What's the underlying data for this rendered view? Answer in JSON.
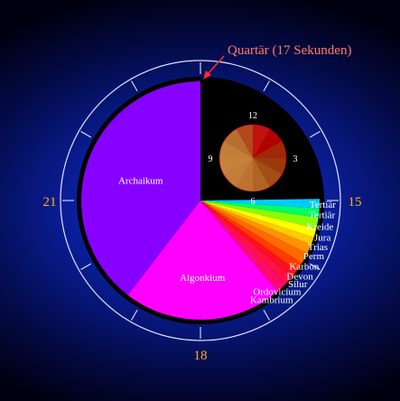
{
  "chart_data": {
    "type": "pie",
    "title": "",
    "clock_labels": {
      "top": "",
      "right": "15",
      "bottom": "18",
      "left": "21"
    },
    "callout": {
      "label": "Quartär (17 Sekunden)",
      "color": "#ff7a6a"
    },
    "slices": [
      {
        "label": "Archaikum",
        "minutes": 95,
        "color": "#8800ff",
        "label_inside": true
      },
      {
        "label": "Algonkium",
        "minutes": 52,
        "color": "#ff00ff",
        "label_inside": true
      },
      {
        "label": "Kambrium",
        "minutes": 3.5,
        "color": "#ff0b6e"
      },
      {
        "label": "Ordovicium",
        "minutes": 3,
        "color": "#ff1144"
      },
      {
        "label": "Silur",
        "minutes": 2.5,
        "color": "#ff0f1e"
      },
      {
        "label": "Devon",
        "minutes": 3,
        "color": "#ff3b00"
      },
      {
        "label": "Karbon",
        "minutes": 3.5,
        "color": "#ff6a00"
      },
      {
        "label": "Perm",
        "minutes": 3,
        "color": "#ff9400"
      },
      {
        "label": "Trias",
        "minutes": 2.5,
        "color": "#ffcc00"
      },
      {
        "label": "Jura",
        "minutes": 3,
        "color": "#ffff00"
      },
      {
        "label": "Kreide",
        "minutes": 3.5,
        "color": "#88ff00"
      },
      {
        "label": "Tertiär",
        "minutes": 3,
        "color": "#00ff66"
      },
      {
        "label": "Tertiär",
        "minutes": 3,
        "color": "#00ccff"
      }
    ],
    "inset": {
      "labels": [
        "12",
        "3",
        "6",
        "9"
      ],
      "base_color": "#b87830",
      "highlight_color": "#b00000"
    }
  }
}
